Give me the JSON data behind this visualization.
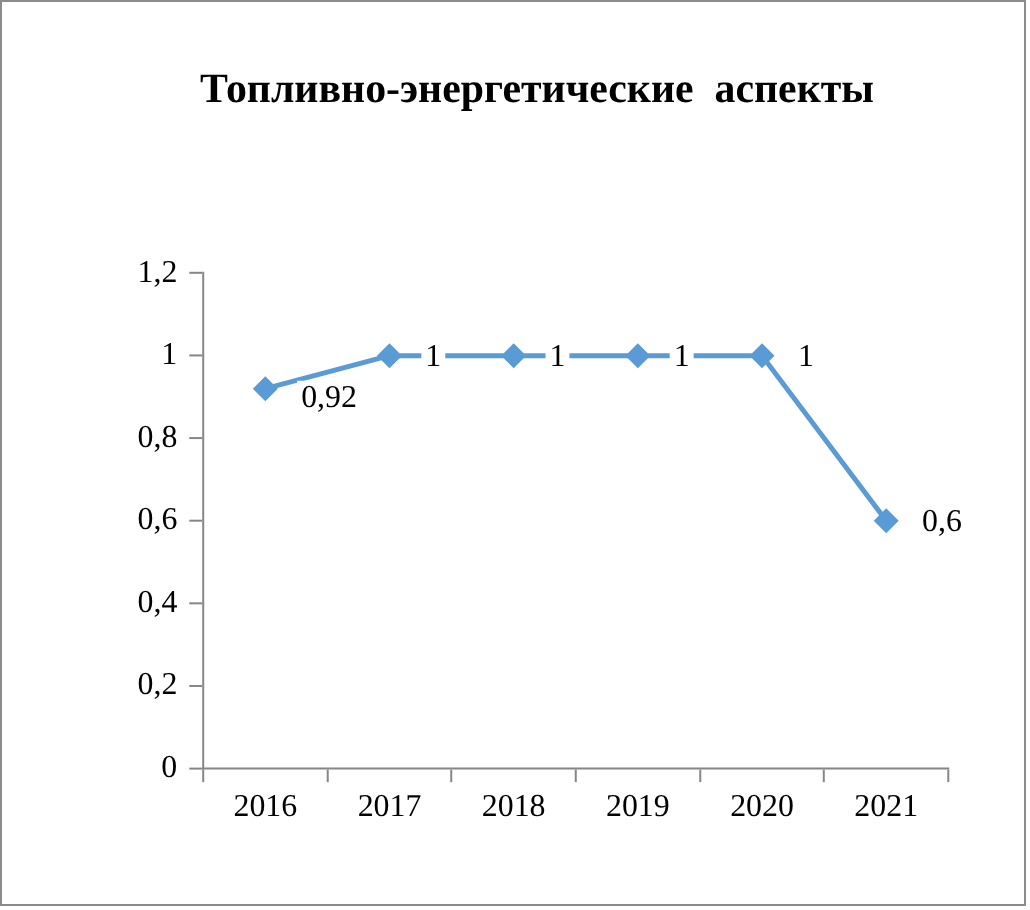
{
  "chart_data": {
    "type": "line",
    "title": "Топливно-энергетические  аспекты",
    "categories": [
      "2016",
      "2017",
      "2018",
      "2019",
      "2020",
      "2021"
    ],
    "series": [
      {
        "color": "#5b9bd5",
        "values": [
          0.92,
          1,
          1,
          1,
          1,
          0.6
        ],
        "value_labels": [
          "0,92",
          "1",
          "1",
          "1",
          "1",
          "0,6"
        ]
      }
    ],
    "ylim": [
      0,
      1.2
    ],
    "yticks": [
      0,
      {
        "value": 0.2,
        "label": "0,2"
      },
      {
        "value": 0.4,
        "label": "0,4"
      },
      {
        "value": 0.6,
        "label": "0,6"
      },
      {
        "value": 0.8,
        "label": "0,8"
      },
      1,
      {
        "value": 1.2,
        "label": "1,2"
      }
    ],
    "grid": false,
    "legend": false,
    "marker": "diamond",
    "line_style": "solid"
  }
}
